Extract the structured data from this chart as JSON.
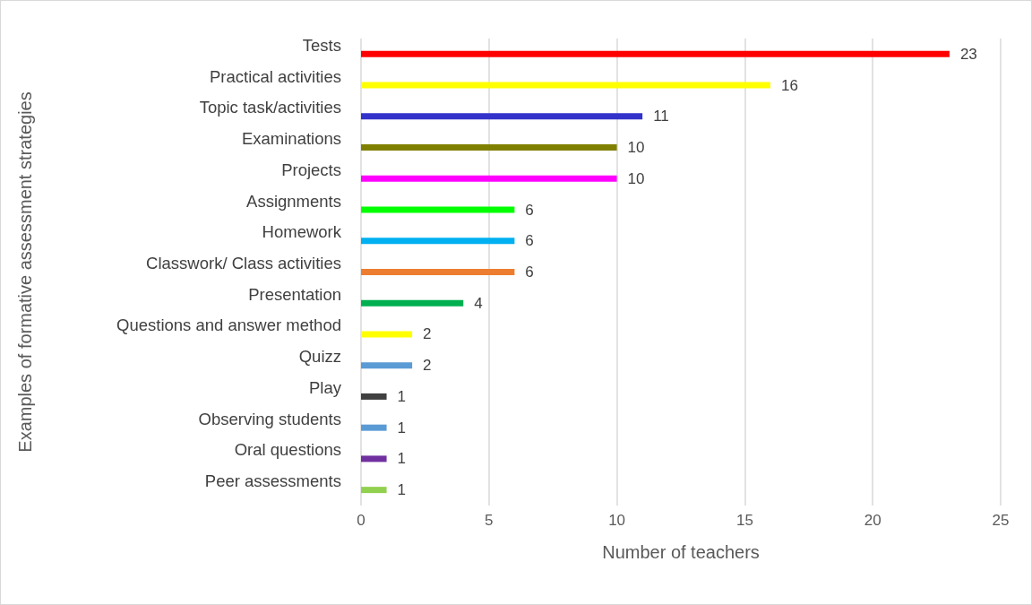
{
  "chart_data": {
    "type": "bar",
    "orientation": "horizontal",
    "xlabel": "Number of teachers",
    "ylabel": "Examples of formative assessment strategies",
    "categories": [
      "Tests",
      "Practical activities",
      "Topic task/activities",
      "Examinations",
      "Projects",
      "Assignments",
      "Homework",
      "Classwork/ Class activities",
      "Presentation",
      "Questions and answer method",
      "Quizz",
      "Play",
      "Observing students",
      "Oral questions",
      "Peer assessments"
    ],
    "values": [
      23,
      16,
      11,
      10,
      10,
      6,
      6,
      6,
      4,
      2,
      2,
      1,
      1,
      1,
      1
    ],
    "colors": [
      "#ff0000",
      "#ffff00",
      "#3333cc",
      "#808000",
      "#ff00ff",
      "#00ff00",
      "#00b0f0",
      "#ed7d31",
      "#00b050",
      "#ffff00",
      "#5b9bd5",
      "#404040",
      "#5b9bd5",
      "#7030a0",
      "#92d050"
    ],
    "xlim": [
      0,
      25
    ],
    "xticks": [
      0,
      5,
      10,
      15,
      20,
      25
    ],
    "grid": "x",
    "data_labels": true
  }
}
